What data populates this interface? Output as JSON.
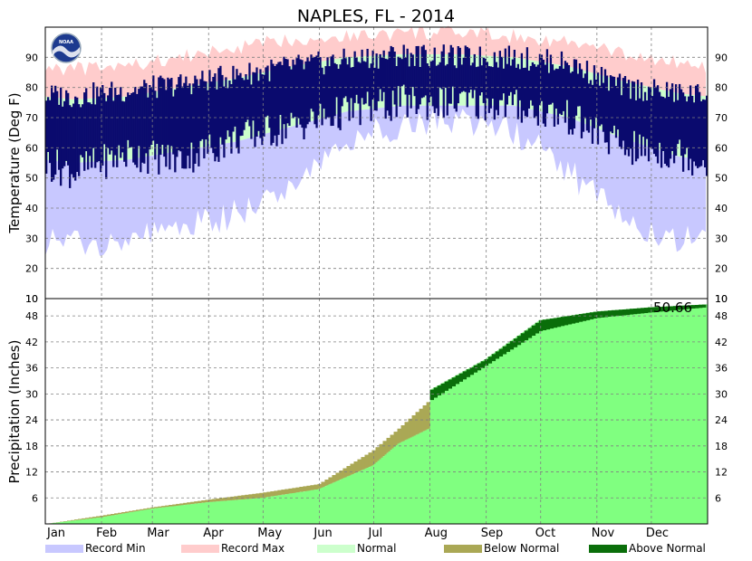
{
  "chart_data": [
    {
      "type": "area",
      "panel": "temperature",
      "title": "NAPLES, FL - 2014",
      "ylabel": "Temperature (Deg F)",
      "ylim": [
        10,
        100
      ],
      "yticks": [
        10,
        20,
        30,
        40,
        50,
        60,
        70,
        80,
        90
      ],
      "months": [
        "Jan",
        "Feb",
        "Mar",
        "Apr",
        "May",
        "Jun",
        "Jul",
        "Aug",
        "Sep",
        "Oct",
        "Nov",
        "Dec"
      ],
      "grid": true,
      "normal_high": [
        76,
        77,
        80,
        83,
        87,
        90,
        91,
        91,
        90,
        87,
        82,
        78
      ],
      "normal_low": [
        55,
        56,
        59,
        62,
        67,
        72,
        74,
        74,
        74,
        70,
        63,
        57
      ],
      "record_max": [
        86,
        87,
        90,
        93,
        96,
        97,
        98,
        98,
        97,
        95,
        91,
        88
      ],
      "record_min": [
        28,
        30,
        33,
        38,
        48,
        62,
        68,
        69,
        66,
        52,
        36,
        30
      ],
      "actual_high_monthly": [
        77,
        79,
        81,
        84,
        87,
        89,
        91,
        90,
        90,
        88,
        80,
        78
      ],
      "actual_low_monthly": [
        52,
        58,
        56,
        63,
        67,
        72,
        75,
        75,
        74,
        70,
        60,
        58
      ],
      "noaa_logo": "NOAA"
    },
    {
      "type": "area",
      "panel": "precipitation",
      "ylabel": "Precipitation (Inches)",
      "ylim": [
        0,
        52
      ],
      "yticks": [
        6,
        12,
        18,
        24,
        30,
        36,
        42,
        48
      ],
      "months": [
        "Jan",
        "Feb",
        "Mar",
        "Apr",
        "May",
        "Jun",
        "Jul",
        "Aug",
        "Sep",
        "Oct",
        "Nov",
        "Dec"
      ],
      "grid": true,
      "day": [
        1,
        31,
        59,
        90,
        120,
        151,
        181,
        195,
        212,
        213,
        243,
        273,
        304,
        334,
        365
      ],
      "normal_cumulative": [
        0.0,
        1.9,
        3.8,
        5.6,
        7.2,
        9.2,
        17.0,
        22.0,
        28.5,
        28.6,
        36.5,
        44.5,
        47.5,
        48.8,
        50.0
      ],
      "actual_cumulative": [
        0.0,
        1.5,
        3.5,
        5.0,
        6.0,
        8.0,
        13.5,
        18.5,
        22.0,
        31.0,
        38.0,
        47.0,
        49.0,
        50.0,
        50.66
      ],
      "total_label": "50.66"
    }
  ],
  "legend": [
    {
      "label": "Record Min",
      "color": "#c8c8ff"
    },
    {
      "label": "Record Max",
      "color": "#ffcccc"
    },
    {
      "label": "Normal",
      "color": "#ccffcc"
    },
    {
      "label": "Below Normal",
      "color": "#aaa855"
    },
    {
      "label": "Above Normal",
      "color": "#0a6e0a"
    }
  ],
  "colors": {
    "actual_temp": "#0a0a6e",
    "precip_actual": "#80ff80",
    "frame": "#000000",
    "grid": "#808080"
  }
}
